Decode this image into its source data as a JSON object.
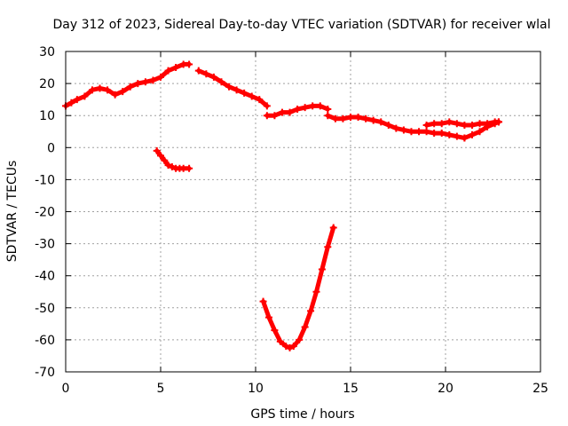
{
  "chart_data": {
    "type": "scatter",
    "title": "Day 312 of 2023, Sidereal Day-to-day VTEC variation (SDTVAR) for receiver wlal",
    "xlabel": "GPS time / hours",
    "ylabel": "SDTVAR / TECUs",
    "xlim": [
      0,
      25
    ],
    "ylim": [
      -70,
      30
    ],
    "xticks": [
      0,
      5,
      10,
      15,
      20,
      25
    ],
    "yticks": [
      -70,
      -60,
      -50,
      -40,
      -30,
      -20,
      -10,
      0,
      10,
      20,
      30
    ],
    "grid": true,
    "color": "#ff0000",
    "series": [
      {
        "name": "arc-main-1",
        "x": [
          0.0,
          0.3,
          0.6,
          1.0,
          1.4,
          1.8,
          2.2,
          2.6,
          3.0,
          3.4,
          3.8,
          4.2,
          4.6,
          5.0,
          5.4,
          5.8,
          6.2,
          6.5
        ],
        "y": [
          13,
          14,
          15,
          16,
          18,
          18.5,
          18,
          16.5,
          17.5,
          19,
          20,
          20.5,
          21,
          22,
          24,
          25,
          26,
          26
        ]
      },
      {
        "name": "arc-main-2",
        "x": [
          7.0,
          7.4,
          7.8,
          8.2,
          8.6,
          9.0,
          9.4,
          9.8,
          10.2,
          10.6
        ],
        "y": [
          24,
          23,
          22,
          20.5,
          19,
          18,
          17,
          16,
          15,
          13
        ]
      },
      {
        "name": "arc-main-3",
        "x": [
          10.6,
          11.0,
          11.4,
          11.8,
          12.2,
          12.6,
          13.0,
          13.4,
          13.8
        ],
        "y": [
          10,
          10,
          11,
          11,
          12,
          12.5,
          13,
          13,
          12
        ]
      },
      {
        "name": "arc-main-4",
        "x": [
          13.8,
          14.2,
          14.6,
          15.0,
          15.4,
          15.8,
          16.2,
          16.6,
          17.0,
          17.4,
          17.8,
          18.2,
          18.6,
          19.0,
          19.4,
          19.8,
          20.2,
          20.6,
          21.0
        ],
        "y": [
          10,
          9,
          9,
          9.5,
          9.5,
          9,
          8.5,
          8,
          7,
          6,
          5.5,
          5,
          5,
          5,
          4.5,
          4.5,
          4,
          3.5,
          3
        ]
      },
      {
        "name": "arc-main-5",
        "x": [
          21.0,
          21.4,
          21.8,
          22.2,
          22.6,
          22.8
        ],
        "y": [
          3,
          4,
          5,
          6.5,
          7.5,
          8
        ]
      },
      {
        "name": "arc-main-6",
        "x": [
          19.0,
          19.4,
          19.8,
          20.2,
          20.6,
          21.0,
          21.4,
          21.8,
          22.2,
          22.6,
          22.8
        ],
        "y": [
          7,
          7.5,
          7.5,
          8,
          7.5,
          7,
          7,
          7.5,
          7.5,
          8,
          8
        ]
      },
      {
        "name": "arc-short",
        "x": [
          4.8,
          5.0,
          5.2,
          5.4,
          5.6,
          5.8,
          6.0,
          6.2,
          6.5
        ],
        "y": [
          -1,
          -2.5,
          -4,
          -5.5,
          -6,
          -6.5,
          -6.5,
          -6.5,
          -6.5
        ]
      },
      {
        "name": "arc-deep",
        "x": [
          10.4,
          10.7,
          11.0,
          11.3,
          11.6,
          11.8,
          12.0,
          12.3,
          12.6,
          12.9,
          13.2,
          13.5,
          13.8,
          14.1
        ],
        "y": [
          -48,
          -53,
          -57,
          -60.5,
          -62,
          -62.5,
          -62,
          -60,
          -56,
          -51,
          -45,
          -38,
          -31,
          -25
        ]
      }
    ]
  }
}
